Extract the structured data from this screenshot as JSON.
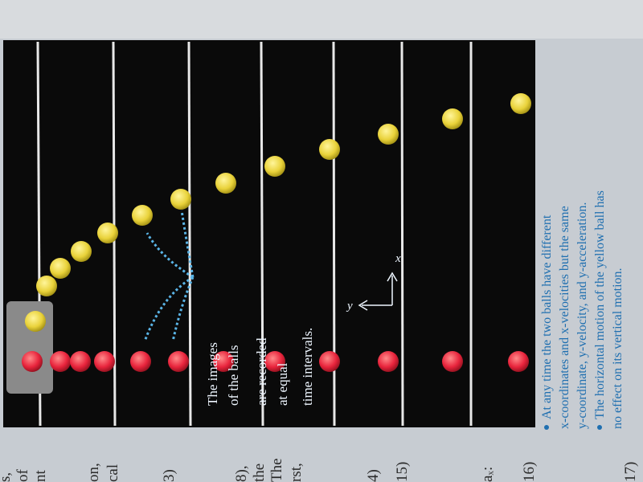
{
  "figure": {
    "caption_lines": [
      "The images",
      "of the balls",
      "are recorded",
      "at equal",
      "time intervals."
    ],
    "axis_x": "x",
    "axis_y": "y"
  },
  "bullets": [
    [
      "At any time the two balls have different",
      "x-coordinates and x-velocities but the same",
      "y-coordinate, y-velocity, and y-acceleration."
    ],
    [
      "The horizontal motion of the yellow ball has",
      "no effect on its vertical motion."
    ]
  ],
  "margin_fragments": [
    "s,",
    "of",
    "nt",
    "on,",
    "cal",
    "3)",
    "8),",
    "the",
    "The",
    "rst,",
    "4)",
    "15)",
    "aₓ:",
    "16)",
    "17)"
  ]
}
